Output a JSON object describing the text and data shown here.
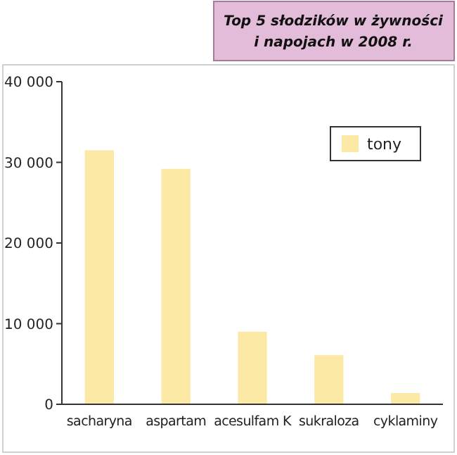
{
  "chart_data": {
    "type": "bar",
    "title": "Top 5 słodzików w żywności i napojach w 2008 r.",
    "categories": [
      "sacharyna",
      "aspartam",
      "acesulfam K",
      "sukraloza",
      "cyklaminy"
    ],
    "series": [
      {
        "name": "tony",
        "color": "#fde9a6",
        "values": [
          31500,
          29200,
          9000,
          6100,
          1400
        ]
      }
    ],
    "ylim": [
      0,
      40000
    ],
    "yticks": [
      {
        "value": 0,
        "label": "0"
      },
      {
        "value": 10000,
        "label": "10 000"
      },
      {
        "value": 20000,
        "label": "20 000"
      },
      {
        "value": 30000,
        "label": "30 000"
      },
      {
        "value": 40000,
        "label": "40 000"
      }
    ],
    "legend": "top right"
  }
}
